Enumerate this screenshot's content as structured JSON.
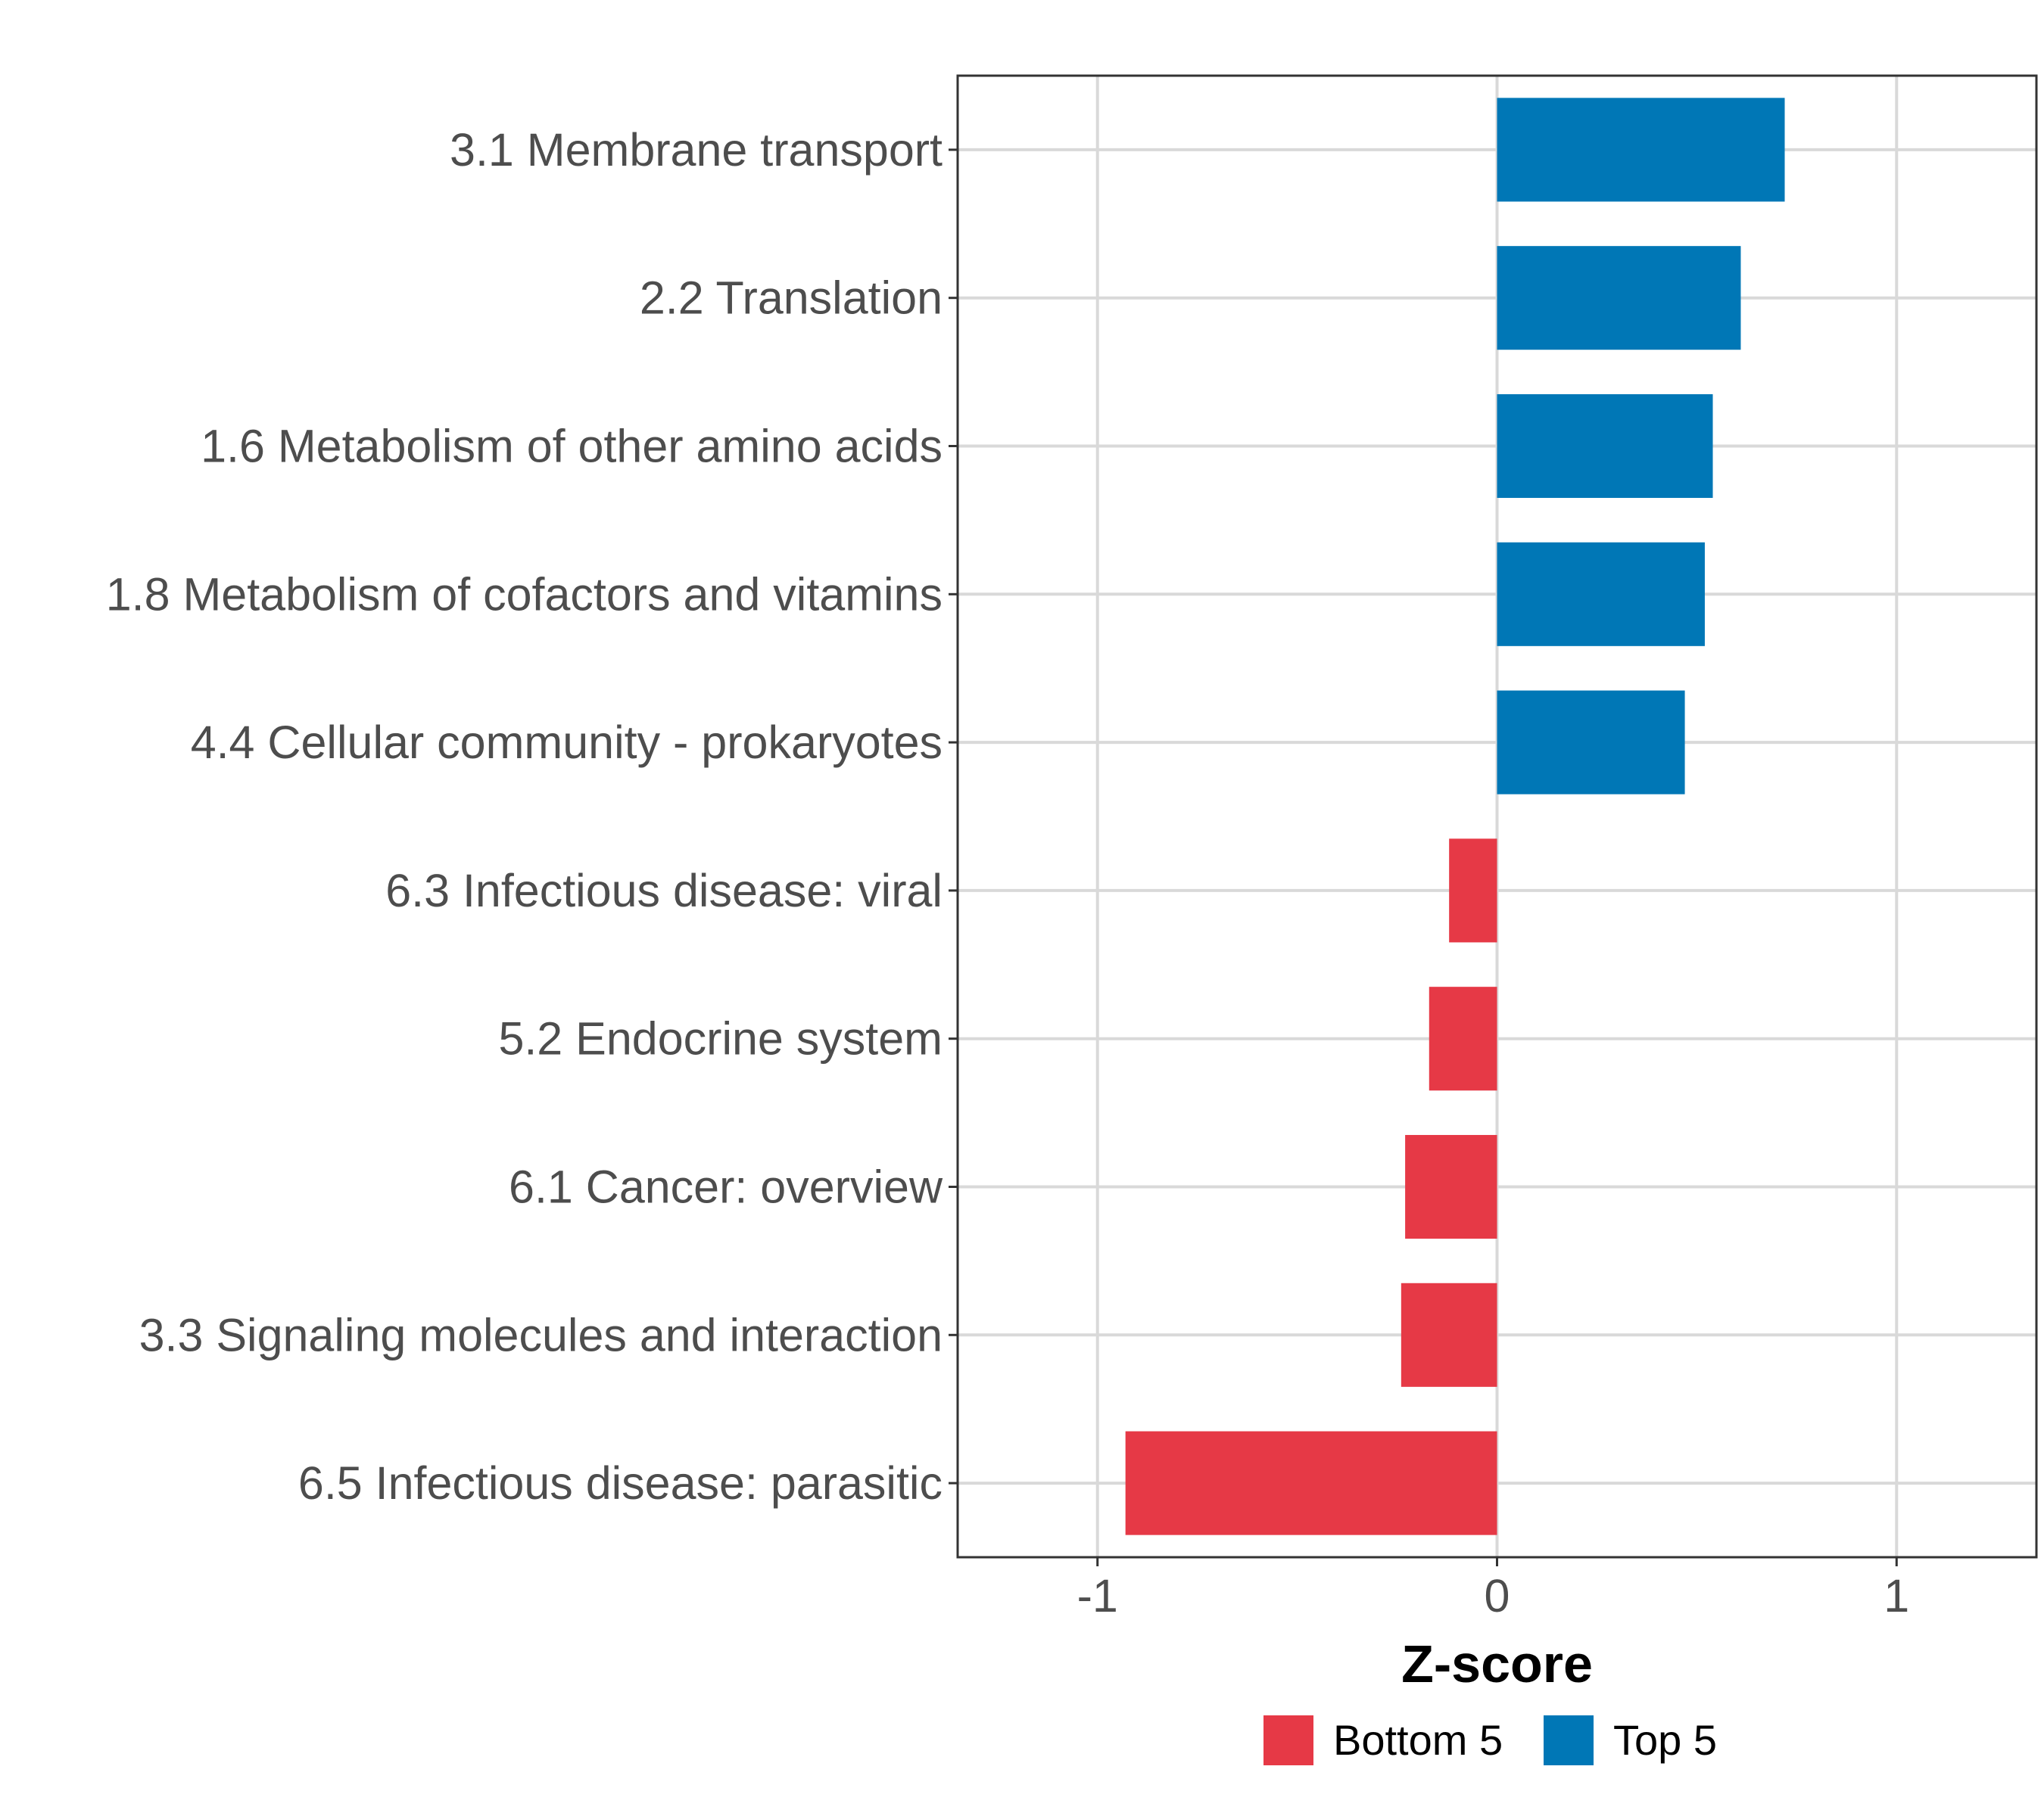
{
  "chart_data": {
    "type": "bar",
    "orientation": "horizontal",
    "title": "",
    "xlabel": "Z-score",
    "ylabel": "",
    "xlim": [
      -1.35,
      1.35
    ],
    "xticks": [
      -1,
      0,
      1
    ],
    "xtick_labels": [
      "-1",
      "0",
      "1"
    ],
    "grid": true,
    "legend_position": "bottom",
    "categories": [
      "3.1 Membrane transport",
      "2.2 Translation",
      "1.6 Metabolism of other amino acids",
      "1.8 Metabolism of cofactors and vitamins",
      "4.4 Cellular community - prokaryotes",
      "6.3 Infectious disease: viral",
      "5.2 Endocrine system",
      "6.1 Cancer: overview",
      "3.3 Signaling molecules and interaction",
      "6.5 Infectious disease: parasitic"
    ],
    "values": [
      0.72,
      0.61,
      0.54,
      0.52,
      0.47,
      -0.12,
      -0.17,
      -0.23,
      -0.24,
      -0.93
    ],
    "groups": [
      "Top 5",
      "Top 5",
      "Top 5",
      "Top 5",
      "Top 5",
      "Bottom 5",
      "Bottom 5",
      "Bottom 5",
      "Bottom 5",
      "Bottom 5"
    ],
    "legend": [
      {
        "name": "Bottom 5",
        "color": "#e63946"
      },
      {
        "name": "Top 5",
        "color": "#0077b6"
      }
    ]
  }
}
